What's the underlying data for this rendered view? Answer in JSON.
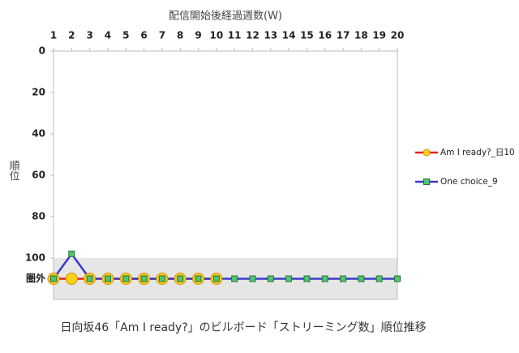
{
  "chart_data": {
    "type": "line",
    "xlabel": "配信開始後経過週数(W)",
    "ylabel": "順位",
    "caption": "日向坂46「Am I ready?」のビルボード「ストリーミング数」順位推移",
    "x": [
      1,
      2,
      3,
      4,
      5,
      6,
      7,
      8,
      9,
      10,
      11,
      12,
      13,
      14,
      15,
      16,
      17,
      18,
      19,
      20
    ],
    "xlim": [
      1,
      20
    ],
    "xticks": [
      1,
      2,
      3,
      4,
      5,
      6,
      7,
      8,
      9,
      10,
      11,
      12,
      13,
      14,
      15,
      16,
      17,
      18,
      19,
      20
    ],
    "ylim": [
      0,
      120
    ],
    "yticks": [
      0,
      20,
      40,
      60,
      80,
      100,
      {
        "value": 110,
        "label": "圏外"
      }
    ],
    "y_inverted": true,
    "shaded_band": {
      "from": 100,
      "to": 120,
      "color": "#e6e6e6"
    },
    "legend": "right",
    "series": [
      {
        "name": "Am I ready?_日10",
        "color": "#e3231b",
        "marker": "circle",
        "marker_fill": "#ffd21a",
        "marker_stroke": "#d98b00",
        "values": [
          110,
          110,
          110,
          110,
          110,
          110,
          110,
          110,
          110,
          110,
          null,
          null,
          null,
          null,
          null,
          null,
          null,
          null,
          null,
          null
        ]
      },
      {
        "name": "One choice_9",
        "color": "#3a3acb",
        "marker": "square",
        "marker_fill": "#4fc76a",
        "marker_stroke": "#2a6f3a",
        "values": [
          110,
          98,
          110,
          110,
          110,
          110,
          110,
          110,
          110,
          110,
          110,
          110,
          110,
          110,
          110,
          110,
          110,
          110,
          110,
          110
        ]
      }
    ]
  }
}
